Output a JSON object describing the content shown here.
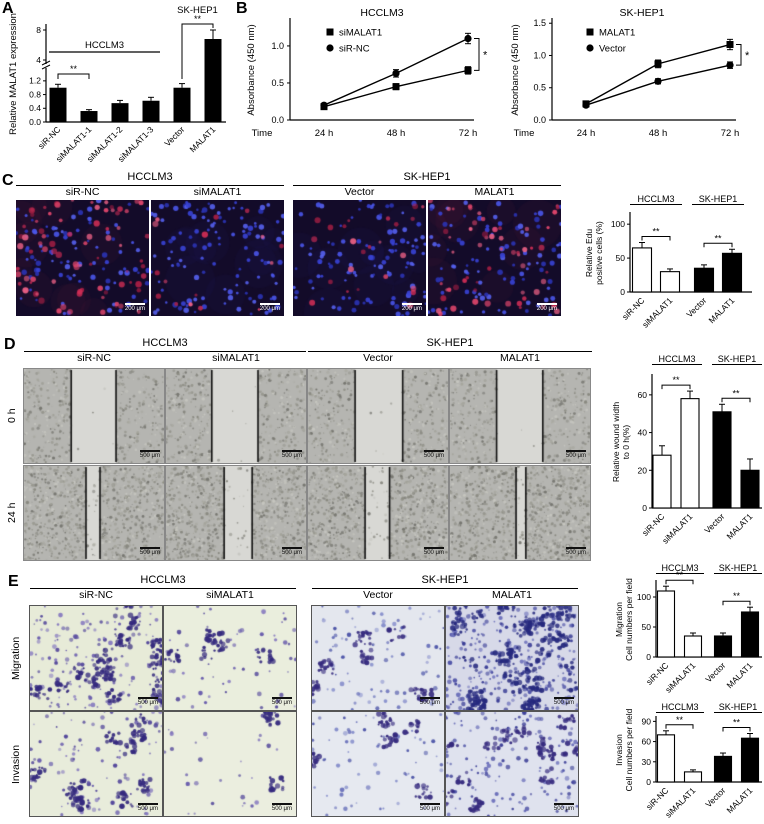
{
  "panel_letters": {
    "A": "A",
    "B": "B",
    "C": "C",
    "D": "D",
    "E": "E"
  },
  "panelA": {
    "chart_data": {
      "type": "bar",
      "ylabel": "Relative MALAT1 expression",
      "categories": [
        "siR-NC",
        "siMALAT1-1",
        "siMALAT1-2",
        "siMALAT1-3",
        "Vector",
        "MALAT1"
      ],
      "values": [
        1.0,
        0.32,
        0.55,
        0.62,
        1.0,
        6.8
      ],
      "errors": [
        0.1,
        0.04,
        0.08,
        0.1,
        0.12,
        1.2
      ],
      "lower_ticks": [
        0,
        0.4,
        0.8,
        1.2
      ],
      "upper_ticks": [
        4,
        8
      ],
      "axis_break": true,
      "bar_color": "#000000",
      "group_labels": [
        {
          "text": "HCCLM3",
          "bars": [
            0,
            3
          ]
        },
        {
          "text": "SK-HEP1",
          "bars": [
            4,
            5
          ]
        }
      ],
      "significance": [
        {
          "bars": [
            0,
            1
          ],
          "label": "**"
        },
        {
          "bars": [
            4,
            5
          ],
          "label": "**"
        }
      ]
    }
  },
  "panelB": {
    "charts": [
      {
        "type": "line",
        "title": "HCCLM3",
        "ylabel": "Absorbance (450 nm)",
        "xlabel": "Time",
        "x_ticks": [
          "24 h",
          "48 h",
          "72 h"
        ],
        "y_ticks": [
          "0.0",
          "0.5",
          "1.0"
        ],
        "ylim": [
          0,
          1.35
        ],
        "series": [
          {
            "name": "siMALAT1",
            "marker": "square",
            "values": [
              0.18,
              0.45,
              0.67
            ],
            "errors": [
              0.02,
              0.04,
              0.05
            ]
          },
          {
            "name": "siR-NC",
            "marker": "circle",
            "values": [
              0.2,
              0.63,
              1.1
            ],
            "errors": [
              0.02,
              0.05,
              0.07
            ]
          }
        ],
        "significance": "*"
      },
      {
        "type": "line",
        "title": "SK-HEP1",
        "ylabel": "Absorbance (450 nm)",
        "xlabel": "Time",
        "x_ticks": [
          "24 h",
          "48 h",
          "72 h"
        ],
        "y_ticks": [
          "0.0",
          "0.5",
          "1.0",
          "1.5"
        ],
        "ylim": [
          0,
          1.55
        ],
        "series": [
          {
            "name": "MALAT1",
            "marker": "square",
            "values": [
              0.25,
              0.87,
              1.17
            ],
            "errors": [
              0.02,
              0.06,
              0.08
            ]
          },
          {
            "name": "Vector",
            "marker": "circle",
            "values": [
              0.23,
              0.6,
              0.85
            ],
            "errors": [
              0.02,
              0.04,
              0.05
            ]
          }
        ],
        "significance": "*"
      }
    ]
  },
  "panelC": {
    "group_headers": [
      "HCCLM3",
      "SK-HEP1"
    ],
    "column_labels": [
      "siR-NC",
      "siMALAT1",
      "Vector",
      "MALAT1"
    ],
    "scale_bar": "200 μm",
    "images": [
      {
        "id": "hcclm3-sirnc",
        "blue": 90,
        "red": 80,
        "halo": true
      },
      {
        "id": "hcclm3-simalat1",
        "blue": 120,
        "red": 16,
        "halo": false
      },
      {
        "id": "skhep1-vector",
        "blue": 105,
        "red": 24,
        "halo": false
      },
      {
        "id": "skhep1-malat1",
        "blue": 95,
        "red": 58,
        "halo": true
      }
    ],
    "chart_data": {
      "type": "bar",
      "headers": [
        "HCCLM3",
        "SK-HEP1"
      ],
      "ylabel_lines": [
        "Relative Edu",
        "positive cells (%)"
      ],
      "y_ticks": [
        0,
        50,
        100
      ],
      "ylim": [
        0,
        115
      ],
      "categories": [
        "siR-NC",
        "siMALAT1",
        "Vector",
        "MALAT1"
      ],
      "values": [
        65,
        30,
        35,
        57
      ],
      "errors": [
        8,
        4,
        5,
        6
      ],
      "bar_colors": [
        "white",
        "white",
        "black",
        "black"
      ],
      "significance": [
        {
          "bars": [
            0,
            1
          ],
          "label": "**"
        },
        {
          "bars": [
            2,
            3
          ],
          "label": "**"
        }
      ]
    }
  },
  "panelD": {
    "group_headers": [
      "HCCLM3",
      "SK-HEP1"
    ],
    "column_labels": [
      "siR-NC",
      "siMALAT1",
      "Vector",
      "MALAT1"
    ],
    "row_labels": [
      "0 h",
      "24 h"
    ],
    "scale_bar": "500 μm",
    "images": [
      {
        "id": "sirnc-0h",
        "gap": 0.32,
        "clear": 0.97,
        "density": 0.5
      },
      {
        "id": "simalat1-0h",
        "gap": 0.33,
        "clear": 0.97,
        "density": 0.5
      },
      {
        "id": "vector-0h",
        "gap": 0.34,
        "clear": 0.97,
        "density": 0.5
      },
      {
        "id": "malat1-0h",
        "gap": 0.33,
        "clear": 0.97,
        "density": 0.5
      },
      {
        "id": "sirnc-24h",
        "gap": 0.1,
        "clear": 0.8,
        "density": 0.85
      },
      {
        "id": "simalat1-24h",
        "gap": 0.2,
        "clear": 0.85,
        "density": 0.85
      },
      {
        "id": "vector-24h",
        "gap": 0.175,
        "clear": 0.85,
        "density": 0.85
      },
      {
        "id": "malat1-24h",
        "gap": 0.07,
        "clear": 0.75,
        "density": 0.85
      }
    ],
    "chart_data": {
      "type": "bar",
      "headers": [
        "HCCLM3",
        "SK-HEP1"
      ],
      "ylabel_lines": [
        "Relative wound width",
        "to 0 h(%)"
      ],
      "y_ticks": [
        0,
        20,
        40,
        60
      ],
      "ylim": [
        0,
        70
      ],
      "categories": [
        "siR-NC",
        "siMALAT1",
        "Vector",
        "MALAT1"
      ],
      "values": [
        28,
        58,
        51,
        20
      ],
      "errors": [
        5,
        4,
        4,
        6
      ],
      "bar_colors": [
        "white",
        "white",
        "black",
        "black"
      ],
      "significance": [
        {
          "bars": [
            0,
            1
          ],
          "label": "**"
        },
        {
          "bars": [
            2,
            3
          ],
          "label": "**"
        }
      ]
    }
  },
  "panelE": {
    "group_headers": [
      "HCCLM3",
      "SK-HEP1"
    ],
    "column_labels": [
      "siR-NC",
      "siMALAT1",
      "Vector",
      "MALAT1"
    ],
    "row_labels": [
      "Migration",
      "Invasion"
    ],
    "scale_bar": "500 μm",
    "images": [
      {
        "id": "sirnc-migration",
        "cells": 150,
        "clusters": 18,
        "bg": "#e7ebd8"
      },
      {
        "id": "simalat1-migration",
        "cells": 55,
        "clusters": 5,
        "bg": "#eaeedd"
      },
      {
        "id": "vector-migration",
        "cells": 80,
        "clusters": 7,
        "bg": "#e4e7ee",
        "palette": [
          "#4d55a8",
          "#6a72bb",
          "#8890cc"
        ]
      },
      {
        "id": "malat1-migration",
        "cells": 260,
        "clusters": 30,
        "bg": "#d7d9e8",
        "palette": [
          "#3a3d96",
          "#5054a8",
          "#6d71bb"
        ],
        "dark": "#26297e"
      },
      {
        "id": "sirnc-invasion",
        "cells": 100,
        "clusters": 10,
        "bg": "#e8ecdb"
      },
      {
        "id": "simalat1-invasion",
        "cells": 30,
        "clusters": 2,
        "bg": "#ebeedf"
      },
      {
        "id": "vector-invasion",
        "cells": 65,
        "clusters": 5,
        "bg": "#e6e9f0",
        "palette": [
          "#4d55a8",
          "#6a72bb",
          "#8890cc"
        ]
      },
      {
        "id": "malat1-invasion",
        "cells": 140,
        "clusters": 12,
        "bg": "#dfe2ee",
        "palette": [
          "#3a3d96",
          "#5054a8",
          "#6d71bb"
        ]
      }
    ],
    "charts": [
      {
        "type": "bar",
        "row": "Migration",
        "headers": [
          "HCCLM3",
          "SK-HEP1"
        ],
        "ylabel_lines": [
          "Migration",
          "Cell numbers per field"
        ],
        "y_ticks": [
          0,
          50,
          100
        ],
        "ylim": [
          0,
          125
        ],
        "categories": [
          "siR-NC",
          "siMALAT1",
          "Vector",
          "MALAT1"
        ],
        "values": [
          110,
          35,
          35,
          75
        ],
        "errors": [
          8,
          5,
          5,
          8
        ],
        "bar_colors": [
          "white",
          "white",
          "black",
          "black"
        ],
        "significance": [
          {
            "bars": [
              0,
              1
            ],
            "label": "**"
          },
          {
            "bars": [
              2,
              3
            ],
            "label": "**"
          }
        ]
      },
      {
        "type": "bar",
        "row": "Invasion",
        "headers": [
          "HCCLM3",
          "SK-HEP1"
        ],
        "ylabel_lines": [
          "Invasion",
          "Cell numbers per field"
        ],
        "y_ticks": [
          0,
          30,
          60,
          90
        ],
        "ylim": [
          0,
          95
        ],
        "categories": [
          "siR-NC",
          "siMALAT1",
          "Vector",
          "MALAT1"
        ],
        "values": [
          70,
          15,
          38,
          65
        ],
        "errors": [
          6,
          3,
          5,
          7
        ],
        "bar_colors": [
          "white",
          "white",
          "black",
          "black"
        ],
        "significance": [
          {
            "bars": [
              0,
              1
            ],
            "label": "**"
          },
          {
            "bars": [
              2,
              3
            ],
            "label": "**"
          }
        ]
      }
    ]
  }
}
